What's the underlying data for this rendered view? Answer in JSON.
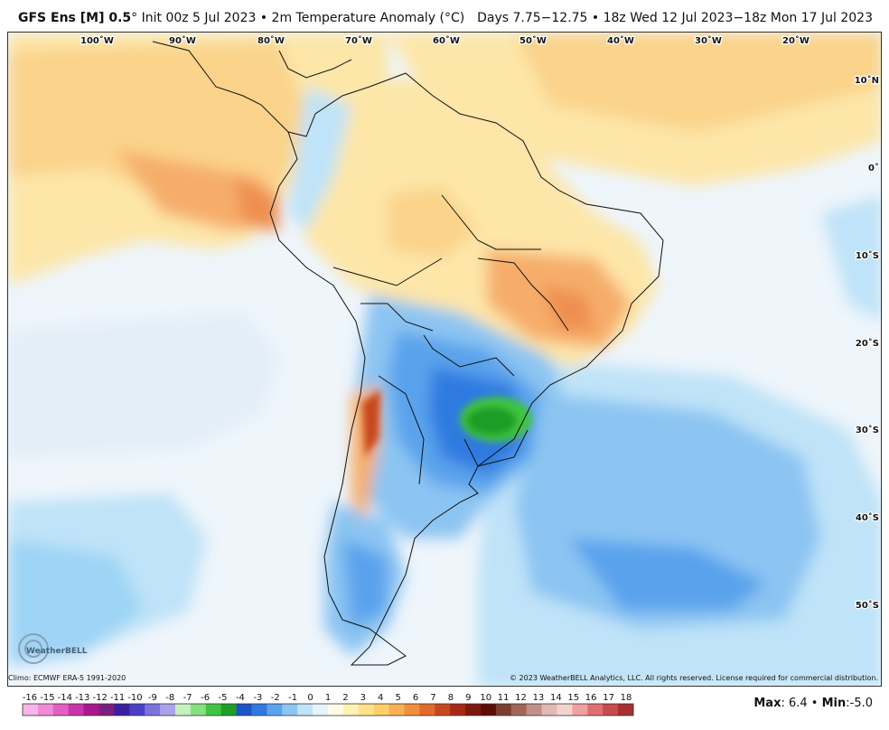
{
  "header": {
    "model": "GFS Ens [M] 0.5",
    "model_suffix": "° Init 00z 5 Jul 2023 • 2m Temperature Anomaly (°C)",
    "valid": "Days 7.75−12.75 • 18z Wed 12 Jul 2023−18z Mon 17 Jul 2023"
  },
  "map": {
    "longitude_labels": [
      "100˚W",
      "90˚W",
      "80˚W",
      "70˚W",
      "60˚W",
      "50˚W",
      "40˚W",
      "30˚W",
      "20˚W"
    ],
    "latitude_labels": [
      "10˚N",
      "0˚",
      "10˚S",
      "20˚S",
      "30˚S",
      "40˚S",
      "50˚S"
    ],
    "logo": "WeatherBELL"
  },
  "footer": {
    "climo": "Climo: ECMWF ERA-5 1991-2020",
    "copyright": "© 2023 WeatherBELL Analytics, LLC. All rights reserved. License required for commercial distribution.",
    "max_label": "Max",
    "max_value": ": 6.4",
    "min_label": "Min",
    "min_value": ":-5.0",
    "separator": " • "
  },
  "colorbar": {
    "labels": [
      "-16",
      "-15",
      "-14",
      "-13",
      "-12",
      "-11",
      "-10",
      "-9",
      "-8",
      "-7",
      "-6",
      "-5",
      "-4",
      "-3",
      "-2",
      "-1",
      "0",
      "1",
      "2",
      "3",
      "4",
      "5",
      "6",
      "7",
      "8",
      "9",
      "10",
      "11",
      "12",
      "13",
      "14",
      "15",
      "16",
      "17",
      "18"
    ],
    "colors": [
      "#f7b5ea",
      "#f08bd8",
      "#e35ec4",
      "#c934ad",
      "#a8178f",
      "#7d1f80",
      "#3a1f9e",
      "#4b3ec8",
      "#7b72dc",
      "#a9a3ec",
      "#c7f0c0",
      "#86e07f",
      "#3fc441",
      "#1f9e28",
      "#1b54c9",
      "#2f7ae0",
      "#5aa3ec",
      "#8cc5f2",
      "#bfe3f8",
      "#e8f4fc",
      "#fffbe8",
      "#fff2b3",
      "#ffe28a",
      "#fccf6a",
      "#f7b150",
      "#f08f3c",
      "#e26a2b",
      "#c8461d",
      "#a52a15",
      "#7f170e",
      "#5e0c08",
      "#7d3e2e",
      "#a1655a",
      "#c38f87",
      "#e3b9b4",
      "#f4d3cf",
      "#f0a0a0",
      "#e07070",
      "#c84a4a",
      "#a82f2f"
    ]
  }
}
